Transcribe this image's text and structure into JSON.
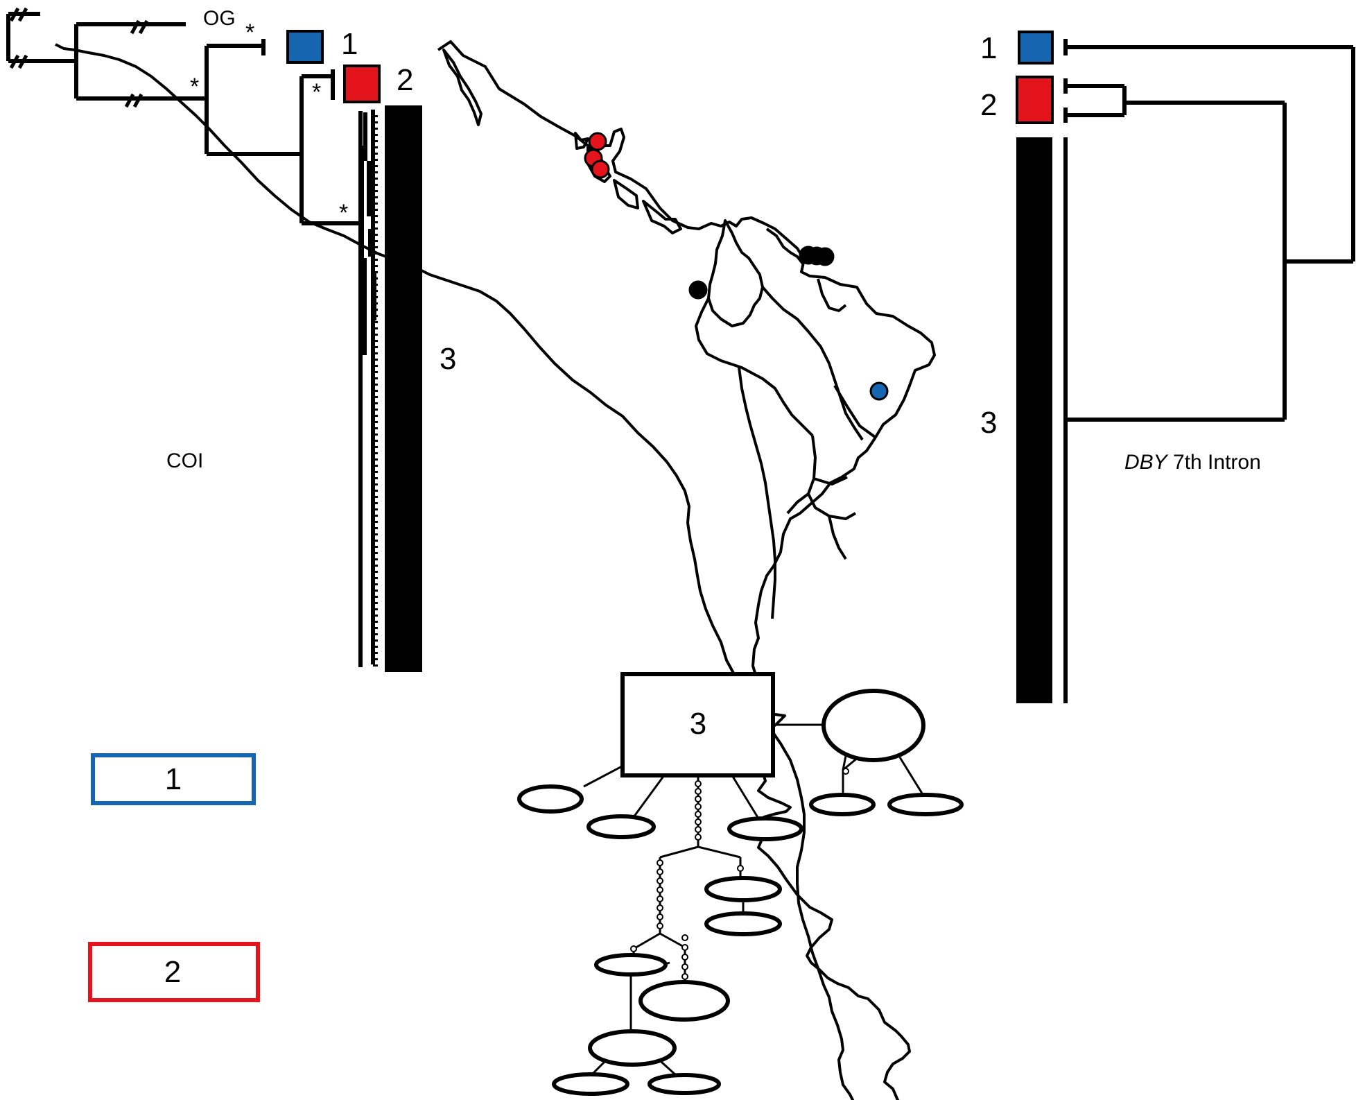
{
  "labels": {
    "og": "OG",
    "support": "*",
    "clade1": "1",
    "clade2": "2",
    "clade3": "3",
    "coi": "COI",
    "dby_gene": "DBY",
    "dby_suffix": " 7th Intron"
  },
  "legend": [
    {
      "label": "1",
      "color": "#1565b0"
    },
    {
      "label": "2",
      "color": "#e3141c"
    }
  ],
  "network": {
    "main_label": "3"
  },
  "colors": {
    "clade1": "#1565b0",
    "clade2": "#e3141c",
    "clade3": "#000000",
    "map_outline": "#000000"
  },
  "map_points": [
    {
      "clade": "2",
      "color": "#e3141c"
    },
    {
      "clade": "2",
      "color": "#e3141c"
    },
    {
      "clade": "2",
      "color": "#e3141c"
    },
    {
      "clade": "3",
      "color": "#000000"
    },
    {
      "clade": "3",
      "color": "#000000"
    },
    {
      "clade": "3",
      "color": "#000000"
    },
    {
      "clade": "3",
      "color": "#000000"
    },
    {
      "clade": "1",
      "color": "#1565b0"
    }
  ]
}
